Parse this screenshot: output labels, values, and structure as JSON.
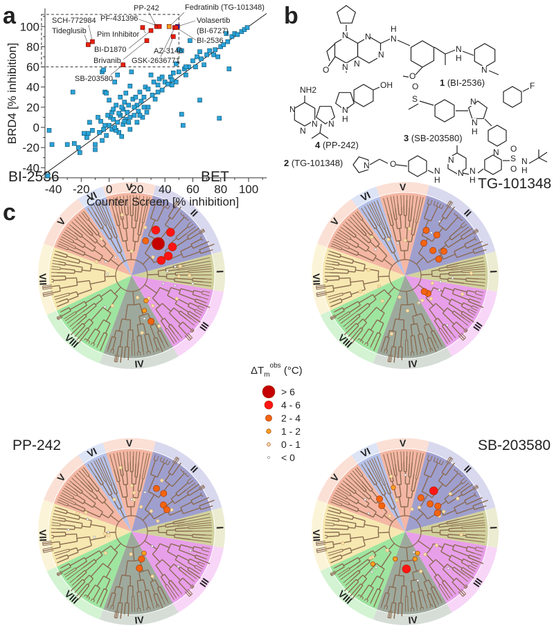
{
  "panels": {
    "a": "a",
    "b": "b",
    "c": "c"
  },
  "chart_data": {
    "type": "scatter",
    "xlabel": "Counter Screen [% inhibition]",
    "ylabel": "BRD4 [% inhibition]",
    "xlim": [
      -50,
      115
    ],
    "ylim": [
      -50,
      118
    ],
    "xticks": [
      "-40",
      "-20",
      "0",
      "20",
      "40",
      "60",
      "80",
      "100"
    ],
    "yticks": [
      "-40",
      "-20",
      "0",
      "20",
      "40",
      "60",
      "80",
      "100"
    ],
    "grid": false,
    "diagonal": "y = x",
    "highlight_box": {
      "x": [
        -50,
        50
      ],
      "y": [
        60,
        112
      ]
    },
    "colors": {
      "default": "#2aa3d8",
      "hit": "#e8200c",
      "fedratinib": "#f5a018",
      "volasertib": "#2233cc"
    },
    "points": [
      [
        -44,
        -48
      ],
      [
        -43,
        -3
      ],
      [
        -41,
        -17
      ],
      [
        -30,
        -17
      ],
      [
        -26,
        35
      ],
      [
        -25,
        -16
      ],
      [
        -22,
        -20
      ],
      [
        -21,
        -25
      ],
      [
        -18,
        -6
      ],
      [
        -16,
        -10
      ],
      [
        -15,
        -6
      ],
      [
        -14,
        5
      ],
      [
        -12,
        -3
      ],
      [
        -10,
        -22
      ],
      [
        -10,
        -17
      ],
      [
        -8,
        10
      ],
      [
        -7,
        -5
      ],
      [
        -6,
        6
      ],
      [
        -5,
        -13
      ],
      [
        -5,
        55
      ],
      [
        -4,
        57
      ],
      [
        -3,
        35
      ],
      [
        -2,
        34
      ],
      [
        -2,
        -8
      ],
      [
        0,
        2
      ],
      [
        0,
        27
      ],
      [
        1,
        10
      ],
      [
        2,
        -2
      ],
      [
        2,
        15
      ],
      [
        3,
        8
      ],
      [
        4,
        45
      ],
      [
        5,
        22
      ],
      [
        6,
        5
      ],
      [
        6,
        52
      ],
      [
        7,
        -5
      ],
      [
        8,
        12
      ],
      [
        8,
        30
      ],
      [
        9,
        -9
      ],
      [
        10,
        3
      ],
      [
        10,
        18
      ],
      [
        11,
        25
      ],
      [
        12,
        8
      ],
      [
        12,
        34
      ],
      [
        13,
        15
      ],
      [
        14,
        22
      ],
      [
        15,
        41
      ],
      [
        15,
        -2
      ],
      [
        16,
        55
      ],
      [
        17,
        28
      ],
      [
        18,
        12
      ],
      [
        19,
        30
      ],
      [
        20,
        22
      ],
      [
        21,
        16
      ],
      [
        22,
        35
      ],
      [
        23,
        26
      ],
      [
        24,
        10
      ],
      [
        25,
        30
      ],
      [
        26,
        40
      ],
      [
        28,
        38
      ],
      [
        28,
        20
      ],
      [
        30,
        52
      ],
      [
        31,
        32
      ],
      [
        32,
        45
      ],
      [
        33,
        28
      ],
      [
        35,
        42
      ],
      [
        36,
        48
      ],
      [
        38,
        37
      ],
      [
        40,
        45
      ],
      [
        42,
        43
      ],
      [
        44,
        50
      ],
      [
        45,
        42
      ],
      [
        46,
        54
      ],
      [
        48,
        45
      ],
      [
        48,
        63
      ],
      [
        50,
        55
      ],
      [
        50,
        77
      ],
      [
        52,
        13
      ],
      [
        52,
        76
      ],
      [
        53,
        2
      ],
      [
        54,
        58
      ],
      [
        55,
        52
      ],
      [
        57,
        60
      ],
      [
        58,
        86
      ],
      [
        60,
        66
      ],
      [
        62,
        60
      ],
      [
        63,
        70
      ],
      [
        65,
        27
      ],
      [
        65,
        75
      ],
      [
        66,
        68
      ],
      [
        68,
        62
      ],
      [
        70,
        72
      ],
      [
        72,
        76
      ],
      [
        75,
        72
      ],
      [
        76,
        77
      ],
      [
        78,
        70
      ],
      [
        79,
        9
      ],
      [
        80,
        80
      ],
      [
        82,
        82
      ],
      [
        84,
        93
      ],
      [
        85,
        85
      ],
      [
        86,
        58
      ],
      [
        88,
        90
      ],
      [
        90,
        93
      ],
      [
        92,
        92
      ],
      [
        95,
        95
      ],
      [
        97,
        97
      ],
      [
        99,
        99
      ],
      [
        38,
        50
      ],
      [
        27,
        15
      ],
      [
        20,
        5
      ],
      [
        5,
        -3
      ],
      [
        -3,
        2
      ],
      [
        15,
        10
      ],
      [
        25,
        20
      ],
      [
        35,
        35
      ],
      [
        45,
        47
      ],
      [
        55,
        60
      ],
      [
        -1,
        12
      ],
      [
        4,
        0
      ],
      [
        9,
        20
      ],
      [
        14,
        5
      ],
      [
        18,
        20
      ],
      [
        22,
        12
      ],
      [
        3,
        18
      ],
      [
        7,
        14
      ],
      [
        11,
        6
      ],
      [
        -4,
        -2
      ]
    ],
    "labeled_points": [
      {
        "name": "Tideglusib",
        "x": -15,
        "y": 82,
        "color": "hit"
      },
      {
        "name": "SCH-772984",
        "x": -12,
        "y": 85,
        "color": "hit"
      },
      {
        "name": "Pim Inhibitor",
        "x": 24,
        "y": 99,
        "color": "hit"
      },
      {
        "name": "BI-D1870",
        "x": 30,
        "y": 96,
        "color": "hit"
      },
      {
        "name": "Brivanib",
        "x": 27,
        "y": 86,
        "color": "hit"
      },
      {
        "name": "PP-242",
        "x": 34,
        "y": 100,
        "color": "hit"
      },
      {
        "name": "PF-431396",
        "x": 36,
        "y": 100,
        "color": "hit"
      },
      {
        "name": "Fedratinib (TG-101348)",
        "x": 43,
        "y": 100,
        "color": "fedratinib"
      },
      {
        "name": "GSK-2636771",
        "x": 47,
        "y": 99,
        "color": "hit"
      },
      {
        "name": "Volasertib",
        "x": 49,
        "y": 100,
        "color": "volasertib"
      },
      {
        "name": "(BI-6727)",
        "x": 49,
        "y": 100,
        "color": "volasertib"
      },
      {
        "name": "BI-2536",
        "x": 48,
        "y": 99,
        "color": "hit"
      },
      {
        "name": "AZ-3146",
        "x": 46,
        "y": 90,
        "color": "hit"
      },
      {
        "name": "SB-203580",
        "x": 10,
        "y": 62,
        "color": "hit"
      }
    ]
  },
  "structures": [
    {
      "number": "1",
      "name": " (BI-2536)",
      "atoms": [
        "N",
        "N",
        "N",
        "N",
        "H",
        "N",
        "O",
        "O",
        "N",
        "H",
        "N",
        "N"
      ]
    },
    {
      "number": "4",
      "name": " (PP-242)",
      "atoms": [
        "NH2",
        "N",
        "N",
        "N",
        "N",
        "OH",
        "N",
        "H"
      ]
    },
    {
      "number": "3",
      "name": " (SB-203580)",
      "atoms": [
        "O",
        "S",
        "N",
        "N",
        "H",
        "F",
        "N"
      ]
    },
    {
      "number": "2",
      "name": " (TG-101348)",
      "atoms": [
        "N",
        "O",
        "N",
        "N",
        "N",
        "N",
        "H",
        "H",
        "S",
        "O",
        "O",
        "N",
        "H"
      ]
    }
  ],
  "trees": [
    {
      "title": "BI-2536",
      "extra": "BET"
    },
    {
      "title": "TG-101348"
    },
    {
      "title": "PP-242"
    },
    {
      "title": "SB-203580"
    }
  ],
  "families": [
    {
      "numeral": "V",
      "inner": "#f2aa94",
      "outer": "#fbe0d6"
    },
    {
      "numeral": "II",
      "inner": "#8e8ec6",
      "outer": "#d8d8ee"
    },
    {
      "numeral": "I",
      "inner": "#c9c98c",
      "outer": "#ececd2"
    },
    {
      "numeral": "III",
      "inner": "#e48ee6",
      "outer": "#f8d6f8"
    },
    {
      "numeral": "IV",
      "inner": "#8d9a8c",
      "outer": "#d6ddd6"
    },
    {
      "numeral": "VIII",
      "inner": "#8de08f",
      "outer": "#d3f3d3"
    },
    {
      "numeral": "VII",
      "inner": "#f4e4a2",
      "outer": "#fcf4d8"
    },
    {
      "numeral": "V",
      "inner": "#f2aa94",
      "outer": "#fbe0d6"
    },
    {
      "numeral": "VI",
      "inner": "#a7b6e6",
      "outer": "#dde4f6"
    }
  ],
  "legend": {
    "title": "ΔT",
    "sub": "m",
    "sup": "obs",
    "unit": " (°C)",
    "items": [
      {
        "label": "> 6",
        "color": "#c40000"
      },
      {
        "label": "4 - 6",
        "color": "#ff1414"
      },
      {
        "label": "2 - 4",
        "color": "#f26410"
      },
      {
        "label": "1 - 2",
        "color": "#f5a020"
      },
      {
        "label": "0 - 1",
        "color": "#f8dfa8"
      },
      {
        "label": "< 0",
        "color": "#ffffff"
      }
    ]
  }
}
